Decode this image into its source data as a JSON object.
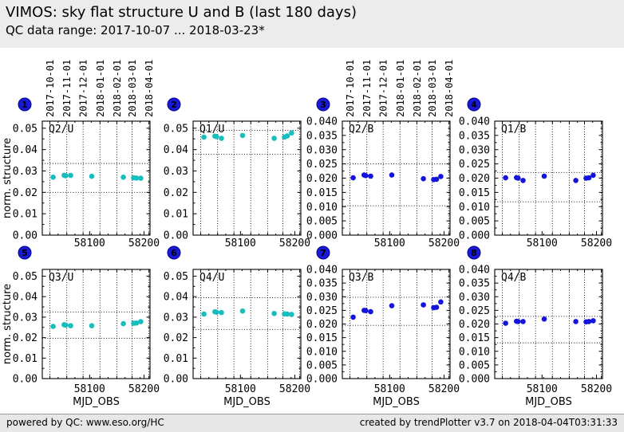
{
  "header": {
    "title": "VIMOS: sky flat structure U and B (last 180 days)",
    "subtitle": "QC data range: 2017-10-07 ... 2018-03-23*"
  },
  "footer": {
    "left": "powered by QC: www.eso.org/HC",
    "right": "created by trendPlotter v3.7 on 2018-04-04T03:31:33"
  },
  "colors": {
    "u_points": "#18bdbd",
    "b_points": "#1414dd",
    "badge_fill": "#1a1ad6",
    "badge_edge": "#000090",
    "grid": "#000000",
    "header_bg": "#ececec",
    "footer_bg": "#e7e7e7"
  },
  "axes": {
    "xlabel": "MJD_OBS",
    "ylabel": "norm. structure",
    "xlim": [
      58013,
      58211
    ],
    "xticks": [
      58100,
      58200
    ],
    "month_gridlines": [
      {
        "mjd": 58027,
        "label": "2017-10-01"
      },
      {
        "mjd": 58058,
        "label": "2017-11-01"
      },
      {
        "mjd": 58088,
        "label": "2017-12-01"
      },
      {
        "mjd": 58119,
        "label": "2018-01-01"
      },
      {
        "mjd": 58150,
        "label": "2018-02-01"
      },
      {
        "mjd": 58178,
        "label": "2018-03-01"
      },
      {
        "mjd": 58209,
        "label": "2018-04-01"
      }
    ]
  },
  "chart_data": [
    {
      "type": "scatter",
      "index": 1,
      "label": "Q2/U",
      "filter": "U",
      "show_date_axis": true,
      "ylim": [
        0,
        0.0533
      ],
      "ytick_step": 0.01,
      "ytick_max": 0.05,
      "ydecimals": 2,
      "thresholds": [
        0.02,
        0.0335
      ],
      "x": [
        58033,
        58053,
        58056,
        58065,
        58104,
        58162,
        58181,
        58186,
        58194
      ],
      "y": [
        0.0271,
        0.028,
        0.0278,
        0.0279,
        0.0275,
        0.0271,
        0.0268,
        0.0267,
        0.0266
      ]
    },
    {
      "type": "scatter",
      "index": 2,
      "label": "Q1/U",
      "filter": "U",
      "show_date_axis": false,
      "ylim": [
        0,
        0.0533
      ],
      "ytick_step": 0.01,
      "ytick_max": 0.05,
      "ydecimals": 2,
      "thresholds": [
        0.0378,
        0.049
      ],
      "x": [
        58033,
        58053,
        58056,
        58065,
        58104,
        58162,
        58181,
        58186,
        58194
      ],
      "y": [
        0.0458,
        0.0463,
        0.0461,
        0.0453,
        0.0466,
        0.0453,
        0.0459,
        0.0464,
        0.0478
      ]
    },
    {
      "type": "scatter",
      "index": 3,
      "label": "Q2/B",
      "filter": "B",
      "show_date_axis": true,
      "ylim": [
        0,
        0.04
      ],
      "ytick_step": 0.005,
      "ytick_max": 0.04,
      "ydecimals": 3,
      "thresholds": [
        0.0103,
        0.025
      ],
      "x": [
        58033,
        58053,
        58056,
        58065,
        58104,
        58162,
        58181,
        58186,
        58194
      ],
      "y": [
        0.0201,
        0.0211,
        0.0209,
        0.0207,
        0.0211,
        0.0198,
        0.0195,
        0.0196,
        0.0206
      ]
    },
    {
      "type": "scatter",
      "index": 4,
      "label": "Q1/B",
      "filter": "B",
      "show_date_axis": false,
      "ylim": [
        0,
        0.04
      ],
      "ytick_step": 0.005,
      "ytick_max": 0.04,
      "ydecimals": 3,
      "thresholds": [
        0.0117,
        0.022
      ],
      "x": [
        58033,
        58053,
        58056,
        58065,
        58104,
        58162,
        58181,
        58186,
        58194
      ],
      "y": [
        0.0201,
        0.0202,
        0.02,
        0.0192,
        0.0207,
        0.0192,
        0.02,
        0.0201,
        0.021
      ]
    },
    {
      "type": "scatter",
      "index": 5,
      "label": "Q3/U",
      "filter": "U",
      "show_date_axis": false,
      "ylim": [
        0,
        0.0533
      ],
      "ytick_step": 0.01,
      "ytick_max": 0.05,
      "ydecimals": 2,
      "thresholds": [
        0.0197,
        0.0325
      ],
      "x": [
        58033,
        58053,
        58056,
        58065,
        58104,
        58162,
        58181,
        58186,
        58194
      ],
      "y": [
        0.0255,
        0.0263,
        0.0261,
        0.0258,
        0.0258,
        0.0268,
        0.027,
        0.0271,
        0.0278
      ]
    },
    {
      "type": "scatter",
      "index": 6,
      "label": "Q4/U",
      "filter": "U",
      "show_date_axis": false,
      "ylim": [
        0,
        0.0533
      ],
      "ytick_step": 0.01,
      "ytick_max": 0.05,
      "ydecimals": 2,
      "thresholds": [
        0.024,
        0.0395
      ],
      "x": [
        58033,
        58053,
        58056,
        58065,
        58104,
        58162,
        58181,
        58186,
        58194
      ],
      "y": [
        0.0315,
        0.0326,
        0.0324,
        0.0322,
        0.033,
        0.0318,
        0.0316,
        0.0315,
        0.0313
      ]
    },
    {
      "type": "scatter",
      "index": 7,
      "label": "Q3/B",
      "filter": "B",
      "show_date_axis": false,
      "ylim": [
        0,
        0.04
      ],
      "ytick_step": 0.005,
      "ytick_max": 0.04,
      "ydecimals": 3,
      "thresholds": [
        0.0195,
        0.0298
      ],
      "x": [
        58033,
        58053,
        58056,
        58065,
        58104,
        58162,
        58181,
        58186,
        58194
      ],
      "y": [
        0.0225,
        0.025,
        0.0249,
        0.0245,
        0.0267,
        0.027,
        0.026,
        0.0261,
        0.0281
      ]
    },
    {
      "type": "scatter",
      "index": 8,
      "label": "Q4/B",
      "filter": "B",
      "show_date_axis": false,
      "ylim": [
        0,
        0.04
      ],
      "ytick_step": 0.005,
      "ytick_max": 0.04,
      "ydecimals": 3,
      "thresholds": [
        0.0131,
        0.0228
      ],
      "x": [
        58033,
        58053,
        58056,
        58065,
        58104,
        58162,
        58181,
        58186,
        58194
      ],
      "y": [
        0.0203,
        0.021,
        0.0209,
        0.0209,
        0.0218,
        0.0209,
        0.0208,
        0.0209,
        0.0212
      ]
    }
  ]
}
